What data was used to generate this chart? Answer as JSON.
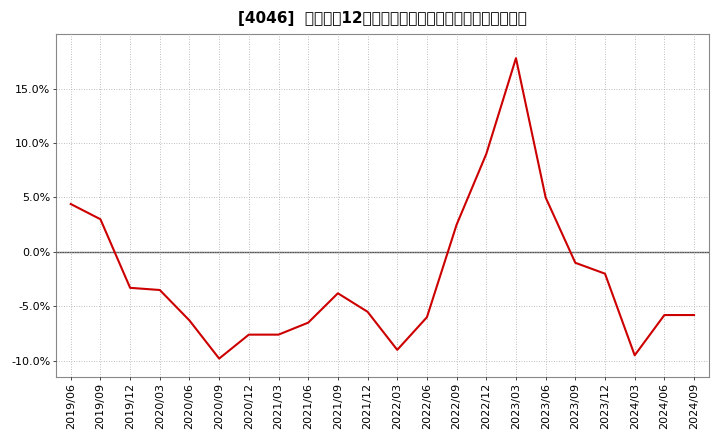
{
  "title": "[4046]  売上高の12か月移動合計の対前年同期増減率の推移",
  "line_color": "#cc0000",
  "background_color": "#ffffff",
  "plot_bg_color": "#ffffff",
  "grid_color": "#aaaaaa",
  "dates": [
    "2019/06",
    "2019/09",
    "2019/12",
    "2020/03",
    "2020/06",
    "2020/09",
    "2020/12",
    "2021/03",
    "2021/06",
    "2021/09",
    "2021/12",
    "2022/03",
    "2022/06",
    "2022/09",
    "2022/12",
    "2023/03",
    "2023/06",
    "2023/09",
    "2023/12",
    "2024/03",
    "2024/06",
    "2024/09"
  ],
  "values": [
    0.044,
    0.03,
    -0.033,
    -0.035,
    -0.063,
    -0.098,
    -0.076,
    -0.076,
    -0.065,
    -0.038,
    -0.055,
    -0.09,
    -0.06,
    0.025,
    0.09,
    0.178,
    0.05,
    -0.01,
    -0.02,
    -0.095,
    -0.058,
    -0.058
  ],
  "yticks": [
    -0.1,
    -0.05,
    0.0,
    0.05,
    0.1,
    0.15
  ],
  "ylim": [
    -0.115,
    0.2
  ],
  "xtick_labels": [
    "2019/06",
    "2019/09",
    "2019/12",
    "2020/03",
    "2020/06",
    "2020/09",
    "2020/12",
    "2021/03",
    "2021/06",
    "2021/09",
    "2021/12",
    "2022/03",
    "2022/06",
    "2022/09",
    "2022/12",
    "2023/03",
    "2023/06",
    "2023/09",
    "2023/12",
    "2024/03",
    "2024/06",
    "2024/09"
  ],
  "title_fontsize": 11,
  "tick_fontsize": 8,
  "line_width": 1.5
}
